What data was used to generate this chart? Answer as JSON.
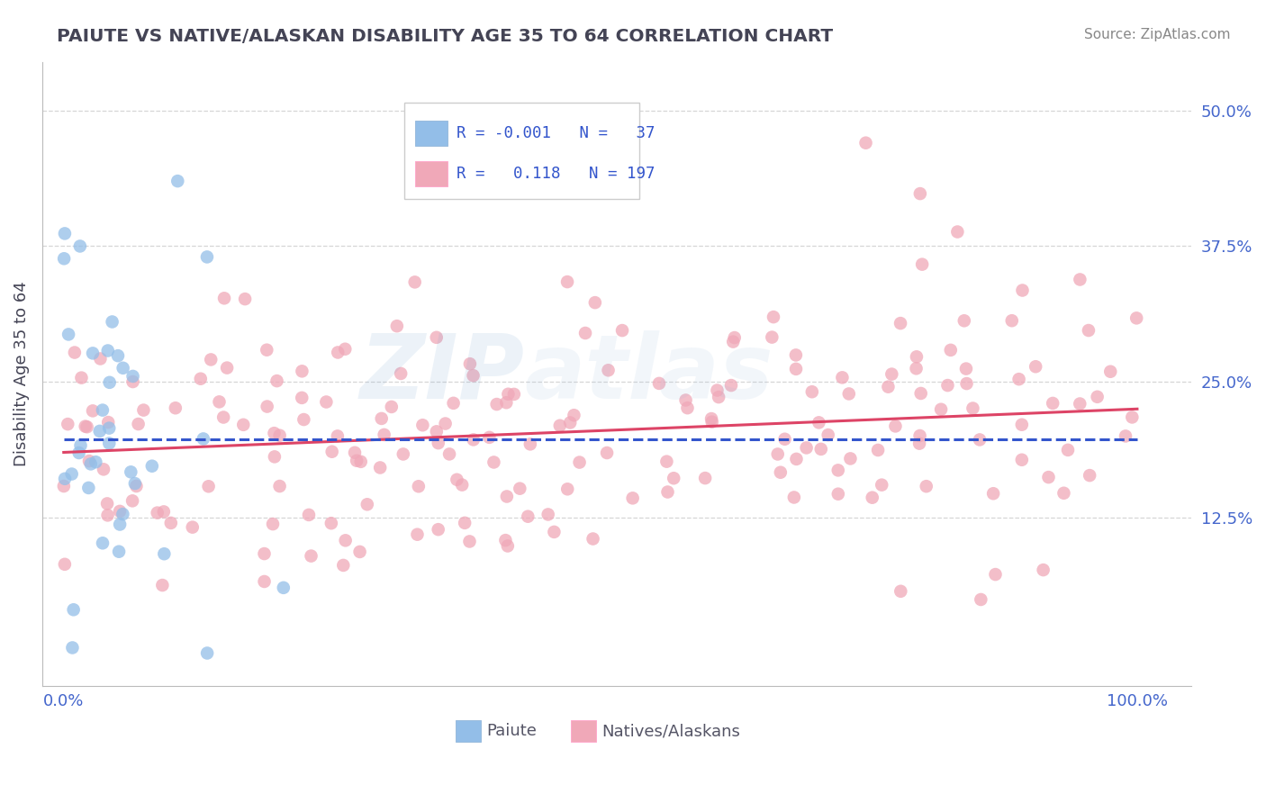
{
  "title": "PAIUTE VS NATIVE/ALASKAN DISABILITY AGE 35 TO 64 CORRELATION CHART",
  "source": "Source: ZipAtlas.com",
  "ylabel": "Disability Age 35 to 64",
  "yticks": [
    0.0,
    0.125,
    0.25,
    0.375,
    0.5
  ],
  "ytick_labels": [
    "",
    "12.5%",
    "25.0%",
    "37.5%",
    "50.0%"
  ],
  "xlim": [
    -0.02,
    1.05
  ],
  "ylim": [
    -0.03,
    0.545
  ],
  "blue_color": "#93BEE8",
  "pink_color": "#F0A8B8",
  "blue_line_color": "#3355CC",
  "pink_line_color": "#DD4466",
  "r_blue": -0.001,
  "n_blue": 37,
  "r_pink": 0.118,
  "n_pink": 197,
  "legend_text_color": "#3355CC",
  "grid_color": "#CCCCCC",
  "background_color": "#FFFFFF",
  "title_color": "#444455",
  "source_color": "#888888",
  "axis_tick_color": "#4466CC",
  "ylabel_color": "#444455"
}
